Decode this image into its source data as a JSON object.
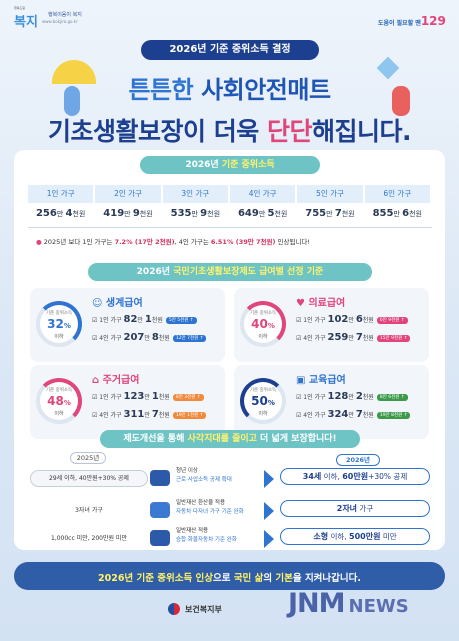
{
  "header": {
    "logo_mark": "복지",
    "logo_small": "행복드림",
    "logo_tagline": "행복이음이 복지",
    "logo_url": "www.bokjiro.go.kr",
    "right_logo_text": "도움이 필요할 땐",
    "right_logo_number": "129",
    "title_pill": "2026년 기준 중위소득 결정",
    "headline1_a": "튼튼한 ",
    "headline1_b": "사회안전매트",
    "headline2_a": "기초생활보장",
    "headline2_b": "이 더욱 ",
    "headline2_c": "단단",
    "headline2_d": "해집니다."
  },
  "income": {
    "section_year": "2026년 ",
    "section_rest": "기준 중위소득",
    "columns": [
      "1인 가구",
      "2인 가구",
      "3인 가구",
      "4인 가구",
      "5인 가구",
      "6인 가구"
    ],
    "values": [
      {
        "big": "256",
        "u1": "만 ",
        "small": "4",
        "u2": "천원"
      },
      {
        "big": "419",
        "u1": "만 ",
        "small": "9",
        "u2": "천원"
      },
      {
        "big": "535",
        "u1": "만 ",
        "small": "9",
        "u2": "천원"
      },
      {
        "big": "649",
        "u1": "만 ",
        "small": "5",
        "u2": "천원"
      },
      {
        "big": "755",
        "u1": "만 ",
        "small": "7",
        "u2": "천원"
      },
      {
        "big": "855",
        "u1": "만 ",
        "small": "6",
        "u2": "천원"
      }
    ],
    "note_a": "2025년 보다 1인 가구는 ",
    "note_b": "7.2% (17만 2천원)",
    "note_c": ", 4인 가구는 ",
    "note_d": "6.51% (39만 7천원)",
    "note_e": " 인상됩니다!"
  },
  "benefits": {
    "section_year": "2026년 ",
    "section_rest": "국민기초생활보장제도 급여별 선정 기준",
    "ring_caption": "기준 중위소득",
    "ring_sub": "이하",
    "items": [
      {
        "title": "생계급여",
        "pct": "32",
        "color": "#2f74d0",
        "l1_label": "1인 가구 ",
        "l1_big": "82",
        "l1_mid": "만 ",
        "l1_small": "1",
        "l1_unit": "천원",
        "l1_tag": "5만 5천원 ↑",
        "l2_label": "4인 가구 ",
        "l2_big": "207",
        "l2_mid": "만 ",
        "l2_small": "8",
        "l2_unit": "천원",
        "l2_tag": "12만 7천원 ↑"
      },
      {
        "title": "의료급여",
        "pct": "40",
        "color": "#e0457b",
        "l1_label": "1인 가구 ",
        "l1_big": "102",
        "l1_mid": "만 ",
        "l1_small": "6",
        "l1_unit": "천원",
        "l1_tag": "6만 9천원 ↑",
        "l2_label": "4인 가구 ",
        "l2_big": "259",
        "l2_mid": "만 ",
        "l2_small": "7",
        "l2_unit": "천원",
        "l2_tag": "15만 9천원 ↑"
      },
      {
        "title": "주거급여",
        "pct": "48",
        "color": "#e0457b",
        "l1_label": "1인 가구 ",
        "l1_big": "123",
        "l1_mid": "만 ",
        "l1_small": "1",
        "l1_unit": "천원",
        "l1_tag": "8만 3천원 ↑",
        "l2_label": "4인 가구 ",
        "l2_big": "311",
        "l2_mid": "만 ",
        "l2_small": "7",
        "l2_unit": "천원",
        "l2_tag": "19만 1천원 ↑"
      },
      {
        "title": "교육급여",
        "pct": "50",
        "color": "#2f74d0",
        "l1_label": "1인 가구 ",
        "l1_big": "128",
        "l1_mid": "만 ",
        "l1_small": "2",
        "l1_unit": "천원",
        "l1_tag": "8만 6천원 ↑",
        "l2_label": "4인 가구 ",
        "l2_big": "324",
        "l2_mid": "만 ",
        "l2_small": "7",
        "l2_unit": "천원",
        "l2_tag": "19만 8천원 ↑"
      }
    ]
  },
  "improvements": {
    "section_a": "제도개선을 통해 ",
    "section_b": "사각지대를 줄이고",
    "section_c": " 더 넓게 보장합니다!",
    "label_2025": "2025년",
    "label_2026": "2026년",
    "rows": [
      {
        "old": "29세 이하, 40만원+30% 공제",
        "mid1": "청년 이상",
        "mid2": "근로·사업소득 공제 확대",
        "new_a": "34세",
        "new_b": " 이하, ",
        "new_c": "60만원",
        "new_d": "+30% 공제"
      },
      {
        "old": "3자녀 가구",
        "mid1": "일반재산 환산율 적용",
        "mid2": "자동차 다자녀 가구 기준 완화",
        "new_a": "2자녀",
        "new_b": " 가구",
        "new_c": "",
        "new_d": ""
      },
      {
        "old": "1,000cc 미만, 200만원 미만",
        "mid1": "일반재산 적용",
        "mid2": "승합·화물자동차 기준 완화",
        "new_a": "소형",
        "new_b": " 이하, ",
        "new_c": "500만원",
        "new_d": " 미만"
      }
    ]
  },
  "footer": {
    "slogan_a": "2026년 기준 중위소득 인상",
    "slogan_b": "으로 ",
    "slogan_c": "국민 삶",
    "slogan_d": "의 ",
    "slogan_e": "기본",
    "slogan_f": "을 지켜나갑니다.",
    "ministry": "보건복지부",
    "watermark": "JNM",
    "watermark_news": "NEWS"
  }
}
